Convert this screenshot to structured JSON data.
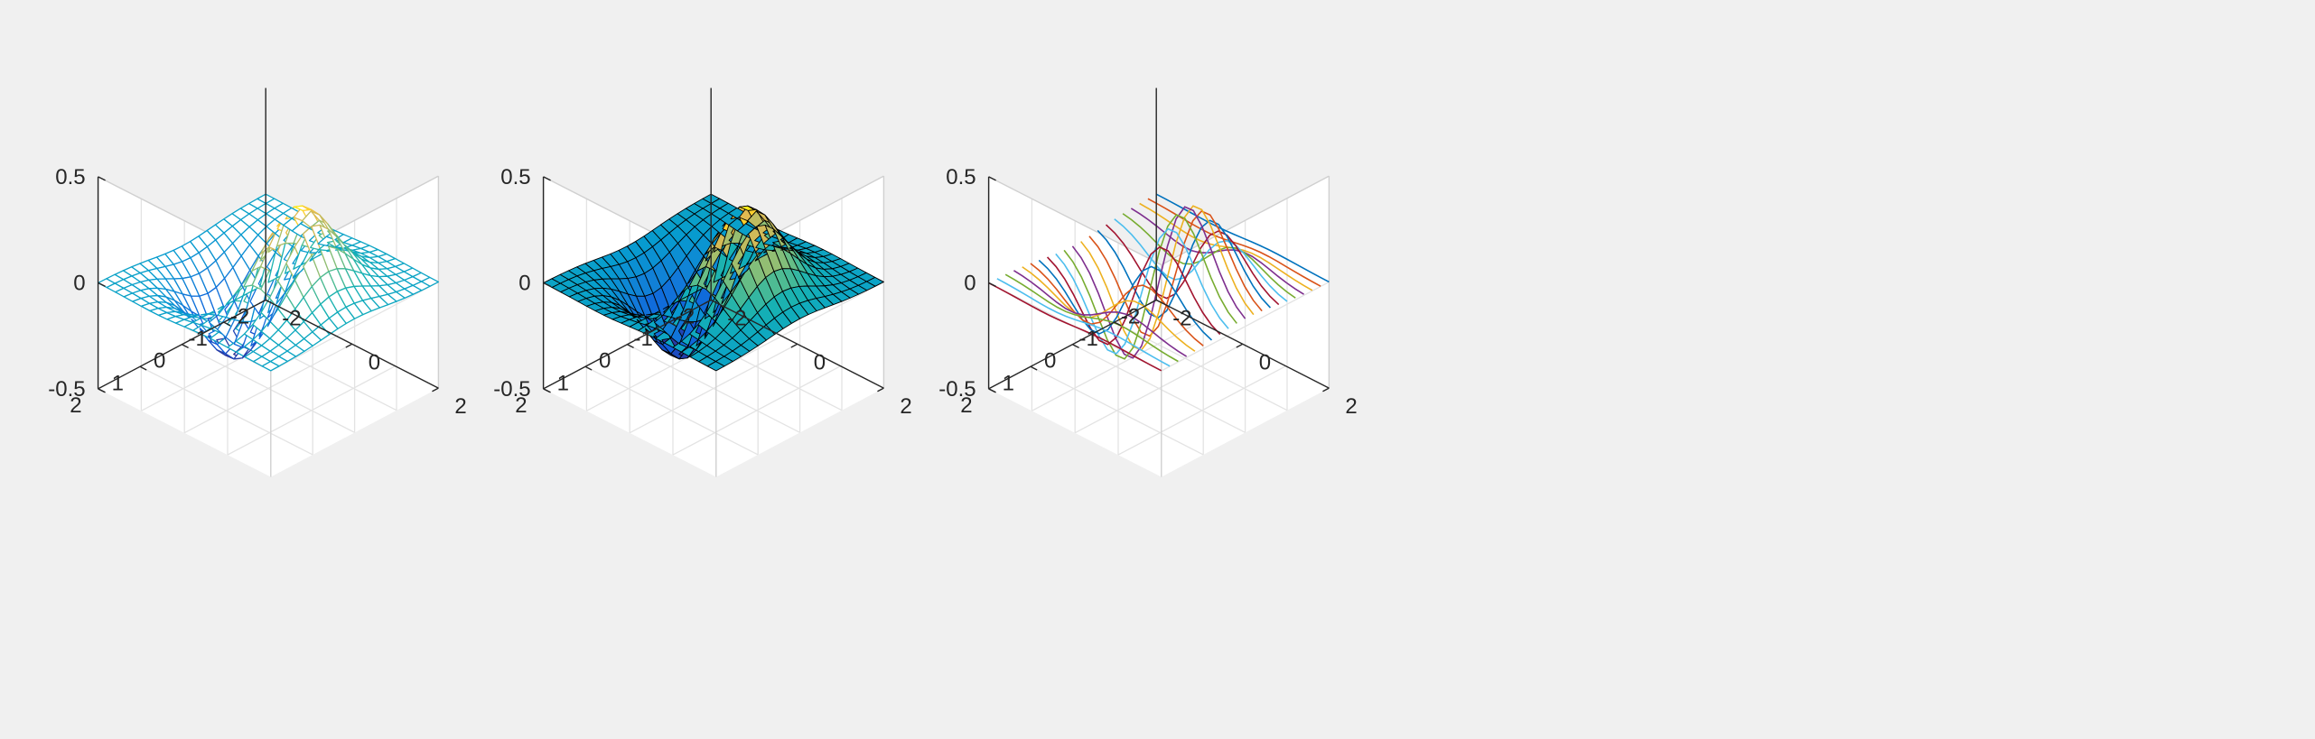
{
  "figure": {
    "background": "#f0f0f0",
    "function": "z = x*exp(-x^2 - y^2)",
    "grid_points": 21
  },
  "chart_data": [
    {
      "type": "mesh",
      "style": "wireframe",
      "colormap": "parula",
      "xlim": [
        -2,
        2
      ],
      "ylim": [
        -2,
        2
      ],
      "zlim": [
        -0.5,
        0.5
      ],
      "x_ticks": [
        "-2",
        "0",
        "2"
      ],
      "y_ticks": [
        "-2",
        "-1",
        "0",
        "1",
        "2"
      ],
      "z_ticks": [
        "-0.5",
        "0",
        "0.5"
      ],
      "grid": true,
      "box": true
    },
    {
      "type": "surf",
      "style": "faceted",
      "colormap": "parula",
      "edge_color": "#000000",
      "xlim": [
        -2,
        2
      ],
      "ylim": [
        -2,
        2
      ],
      "zlim": [
        -0.5,
        0.5
      ],
      "x_ticks": [
        "-2",
        "0",
        "2"
      ],
      "y_ticks": [
        "-2",
        "-1",
        "0",
        "1",
        "2"
      ],
      "z_ticks": [
        "-0.5",
        "0",
        "0.5"
      ],
      "grid": true,
      "box": true
    },
    {
      "type": "plot3",
      "style": "lines",
      "line_colors": [
        "#0072BD",
        "#D95319",
        "#EDB120",
        "#7E2F8E",
        "#77AC30",
        "#4DBEEE",
        "#A2142F"
      ],
      "xlim": [
        -2,
        2
      ],
      "ylim": [
        -2,
        2
      ],
      "zlim": [
        -0.5,
        0.5
      ],
      "x_ticks": [
        "-2",
        "0",
        "2"
      ],
      "y_ticks": [
        "-2",
        "-1",
        "0",
        "1",
        "2"
      ],
      "z_ticks": [
        "-0.5",
        "0",
        "0.5"
      ],
      "grid": true,
      "box": true
    }
  ]
}
